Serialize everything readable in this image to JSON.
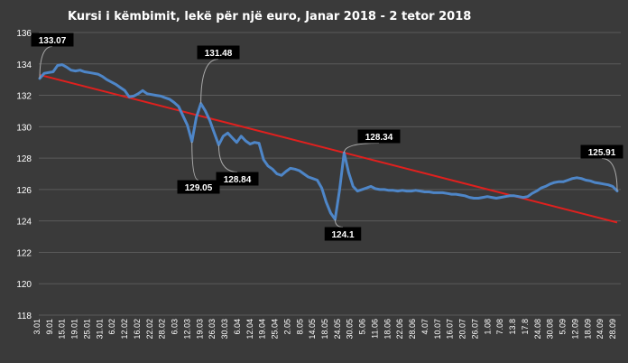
{
  "chart_data": {
    "type": "line",
    "title": "Kursi i këmbimit, lekë për një euro, Janar 2018 - 2 tetor 2018",
    "xlabel": "",
    "ylabel": "",
    "ylim": [
      118,
      136
    ],
    "yticks": [
      "118",
      "120",
      "122",
      "124",
      "126",
      "128",
      "130",
      "132",
      "134",
      "136"
    ],
    "grid": true,
    "legend": "none",
    "x_tick_labels": [
      "3.01",
      "9.01",
      "15.01",
      "19.01",
      "25.01",
      "31.01",
      "6.02",
      "12.02",
      "16.02",
      "22.02",
      "28.02",
      "6.03",
      "12.03",
      "19.03",
      "26.03",
      "30.03",
      "6.04",
      "12.04",
      "19.04",
      "25.04",
      "2.05",
      "8.05",
      "14.05",
      "18.05",
      "24.05",
      "30.05",
      "5.06",
      "11.06",
      "18.06",
      "22.06",
      "28.06",
      "4.07",
      "10.07",
      "16.07",
      "20.07",
      "26.07",
      "1.08",
      "7.08",
      "13.8",
      "17.8",
      "24.08",
      "30.08",
      "5.09",
      "12.09",
      "18.09",
      "24.09",
      "28.09"
    ],
    "series": [
      {
        "color": "#4e86c8",
        "values": [
          133.07,
          133.4,
          133.45,
          133.5,
          133.9,
          133.95,
          133.8,
          133.6,
          133.55,
          133.6,
          133.5,
          133.45,
          133.4,
          133.35,
          133.2,
          133.0,
          132.85,
          132.7,
          132.5,
          132.3,
          131.9,
          131.95,
          132.1,
          132.3,
          132.1,
          132.05,
          132.0,
          131.95,
          131.85,
          131.75,
          131.55,
          131.3,
          130.7,
          130.1,
          129.05,
          130.6,
          131.48,
          131.0,
          130.4,
          129.6,
          128.84,
          129.4,
          129.6,
          129.3,
          129.0,
          129.4,
          129.1,
          128.9,
          129.0,
          128.95,
          127.9,
          127.5,
          127.3,
          127.0,
          126.9,
          127.15,
          127.35,
          127.3,
          127.2,
          127.0,
          126.8,
          126.7,
          126.6,
          126.1,
          125.2,
          124.5,
          124.1,
          126.0,
          128.34,
          127.1,
          126.2,
          125.9,
          126.0,
          126.1,
          126.2,
          126.05,
          126.0,
          126.0,
          125.95,
          125.95,
          125.9,
          125.95,
          125.9,
          125.9,
          125.95,
          125.9,
          125.85,
          125.85,
          125.8,
          125.8,
          125.8,
          125.75,
          125.7,
          125.7,
          125.65,
          125.6,
          125.5,
          125.45,
          125.45,
          125.5,
          125.55,
          125.5,
          125.45,
          125.5,
          125.55,
          125.6,
          125.6,
          125.55,
          125.5,
          125.55,
          125.75,
          125.9,
          126.1,
          126.2,
          126.35,
          126.45,
          126.5,
          126.5,
          126.6,
          126.7,
          126.75,
          126.7,
          126.6,
          126.55,
          126.45,
          126.4,
          126.35,
          126.3,
          126.2,
          125.91
        ]
      },
      {
        "type": "trendline",
        "color": "#e0201e",
        "values": [
          133.3,
          123.9
        ]
      }
    ],
    "annotations": [
      {
        "label": "133.07",
        "index": 0
      },
      {
        "label": "131.48",
        "index": 36
      },
      {
        "label": "129.05",
        "index": 34
      },
      {
        "label": "128.84",
        "index": 40
      },
      {
        "label": "128.34",
        "index": 68
      },
      {
        "label": "124.1",
        "index": 66
      },
      {
        "label": "125.91",
        "index": 129
      }
    ]
  }
}
